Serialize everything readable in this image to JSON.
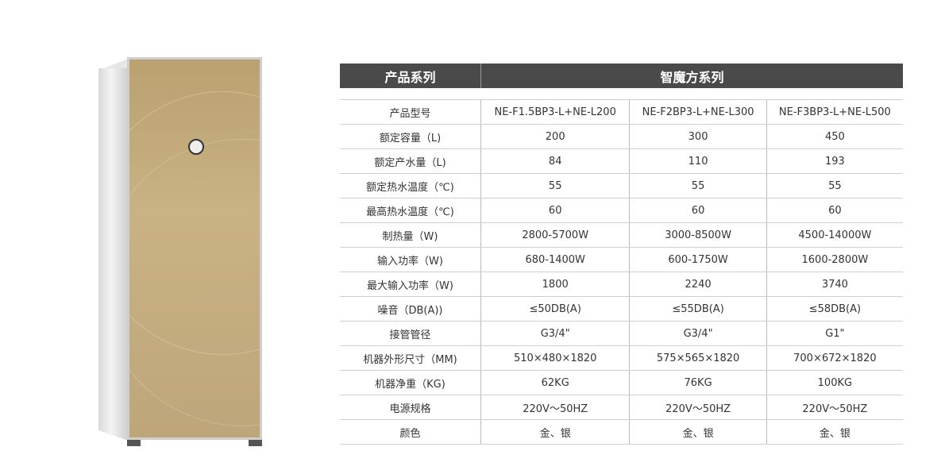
{
  "header": {
    "series_label": "产品系列",
    "series_name": "智魔方系列"
  },
  "rows": [
    {
      "label": "产品型号",
      "values": [
        "NE-F1.5BP3-L+NE-L200",
        "NE-F2BP3-L+NE-L300",
        "NE-F3BP3-L+NE-L500"
      ]
    },
    {
      "label": "额定容量（L)",
      "values": [
        "200",
        "300",
        "450"
      ]
    },
    {
      "label": "额定产水量（L)",
      "values": [
        "84",
        "110",
        "193"
      ]
    },
    {
      "label": "额定热水温度（℃)",
      "values": [
        "55",
        "55",
        "55"
      ]
    },
    {
      "label": "最高热水温度（℃)",
      "values": [
        "60",
        "60",
        "60"
      ]
    },
    {
      "label": "制热量（W)",
      "values": [
        "2800-5700W",
        "3000-8500W",
        "4500-14000W"
      ]
    },
    {
      "label": "输入功率（W)",
      "values": [
        "680-1400W",
        "600-1750W",
        "1600-2800W"
      ]
    },
    {
      "label": "最大输入功率（W)",
      "values": [
        "1800",
        "2240",
        "3740"
      ]
    },
    {
      "label": "噪音（DB(A))",
      "values": [
        "≤50DB(A)",
        "≤55DB(A)",
        "≤58DB(A)"
      ]
    },
    {
      "label": "接管管径",
      "values": [
        "G3/4\"",
        "G3/4\"",
        "G1\""
      ]
    },
    {
      "label": "机器外形尺寸（MM)",
      "values": [
        "510×480×1820",
        "575×565×1820",
        "700×672×1820"
      ]
    },
    {
      "label": "机器净重（KG)",
      "values": [
        "62KG",
        "76KG",
        "100KG"
      ]
    },
    {
      "label": "电源规格",
      "values": [
        "220V～50HZ",
        "220V～50HZ",
        "220V～50HZ"
      ]
    },
    {
      "label": "颜色",
      "values": [
        "金、银",
        "金、银",
        "金、银"
      ]
    }
  ]
}
